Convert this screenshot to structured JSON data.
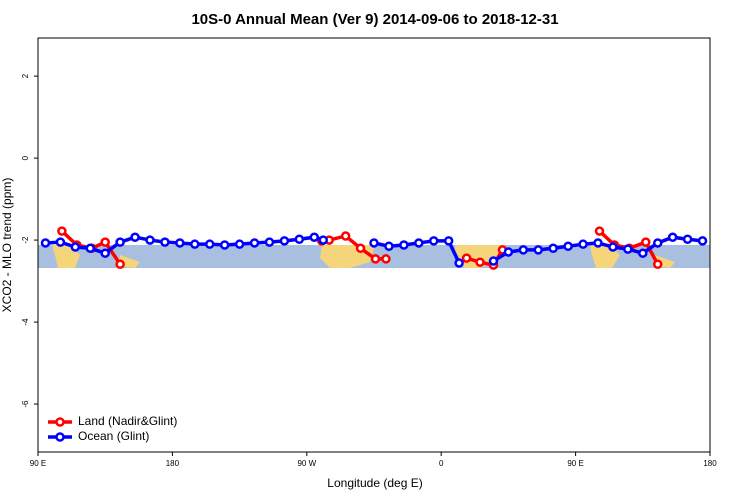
{
  "chart_data": {
    "type": "line",
    "title": "10S-0 Annual Mean (Ver 9)   2014-09-06 to 2018-12-31",
    "x_label": "Longitude (deg E)",
    "y_label": "XCO2 - MLO trend (ppm)",
    "xlim": [
      90,
      540
    ],
    "xticks": [
      {
        "value": 90,
        "label": "90 E"
      },
      180,
      {
        "value": 270,
        "label": "90 W"
      },
      {
        "value": 360,
        "label": "0"
      },
      {
        "value": 450,
        "label": "90 E"
      },
      {
        "value": 540,
        "label": "180"
      }
    ],
    "ylim": [
      -7.17,
      2.93
    ],
    "yticks": [
      -6,
      -4,
      -2,
      0,
      2
    ],
    "legend": "bottom-left",
    "series": [
      {
        "name": "Land (Nadir&Glint)",
        "color": "#ff0000",
        "x": [
          106,
          116,
          126,
          135,
          145,
          200,
          280,
          285,
          296,
          306,
          316,
          323,
          350,
          377,
          386,
          395,
          401,
          430,
          466,
          476,
          486,
          497,
          505
        ],
        "values": [
          -1.78,
          -2.12,
          -2.2,
          -2.05,
          -2.59,
          null,
          -2.02,
          -2.0,
          -1.9,
          -2.2,
          -2.46,
          -2.46,
          null,
          -2.44,
          -2.54,
          -2.61,
          -2.24,
          null,
          -1.78,
          -2.12,
          -2.2,
          -2.05,
          -2.59
        ]
      },
      {
        "name": "Ocean (Glint)",
        "color": "#0000ff",
        "x": [
          95,
          105,
          115,
          125,
          135,
          145,
          155,
          165,
          175,
          185,
          195,
          205,
          215,
          225,
          235,
          245,
          255,
          265,
          275,
          281,
          300,
          315,
          325,
          335,
          345,
          355,
          365,
          372,
          385,
          395,
          405,
          415,
          425,
          435,
          445,
          455,
          465,
          475,
          485,
          495,
          505,
          515,
          525,
          535
        ],
        "values": [
          -2.07,
          -2.05,
          -2.17,
          -2.2,
          -2.32,
          -2.05,
          -1.93,
          -2.0,
          -2.05,
          -2.07,
          -2.1,
          -2.1,
          -2.12,
          -2.1,
          -2.07,
          -2.05,
          -2.02,
          -1.98,
          -1.93,
          -2.0,
          null,
          -2.07,
          -2.15,
          -2.12,
          -2.07,
          -2.02,
          -2.02,
          -2.56,
          null,
          -2.51,
          -2.29,
          -2.24,
          -2.24,
          -2.2,
          -2.15,
          -2.1,
          -2.07,
          -2.17,
          -2.22,
          -2.32,
          -2.07,
          -1.93,
          -1.98,
          -2.02
        ]
      }
    ]
  }
}
